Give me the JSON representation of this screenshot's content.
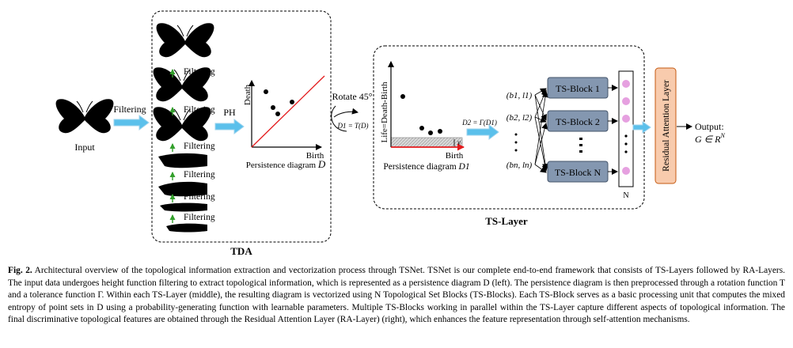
{
  "figure": {
    "input_label": "Input",
    "filtering_label": "Filtering",
    "ph_label": "PH",
    "tda_label": "TDA",
    "tda_diagram": {
      "death_label": "Death",
      "birth_label": "Birth",
      "caption": "Persistence diagram",
      "symbol": "D"
    },
    "rotate_label": "Rotate 45°",
    "rotate_formula": "D1 = T(D)",
    "ts_layer": {
      "title": "TS-Layer",
      "diagram": {
        "y_label": "Life=Death-Birth",
        "birth_label": "Birth",
        "caption": "Persistence diagram",
        "symbol": "D1",
        "nu": "ν"
      },
      "gamma_formula": "D2 = Γ(D1)",
      "pairs": [
        "(b1, l1)",
        "(b2, l2)",
        "(bn, ln)"
      ],
      "blocks": [
        "TS-Block 1",
        "TS-Block 2",
        "TS-Block N"
      ],
      "n_label": "N"
    },
    "residual_label": "Residual Attention Layer",
    "output_label": "Output:",
    "output_formula": "G ∈ R",
    "output_sup": "N",
    "colors": {
      "block_fill": "#8497b0",
      "residual_fill": "#f8cbad",
      "arrow_fill": "#5bc0eb",
      "dot_fill": "#e6a0e0",
      "diagonal": "#e31a1c"
    }
  },
  "caption": {
    "label": "Fig. 2.",
    "text": "Architectural overview of the topological information extraction and vectorization process through TSNet. TSNet is our complete end-to-end framework that consists of TS-Layers followed by RA-Layers. The input data undergoes height function filtering to extract topological information, which is represented as a persistence diagram D (left). The persistence diagram is then preprocessed through a rotation function T and a tolerance function Γ. Within each TS-Layer (middle), the resulting diagram is vectorized using N Topological Set Blocks (TS-Blocks). Each TS-Block serves as a basic processing unit that computes the mixed entropy of point sets in D using a probability-generating function with learnable parameters. Multiple TS-Blocks working in parallel within the TS-Layer capture different aspects of topological information. The final discriminative topological features are obtained through the Residual Attention Layer (RA-Layer) (right), which enhances the feature representation through self-attention mechanisms."
  }
}
